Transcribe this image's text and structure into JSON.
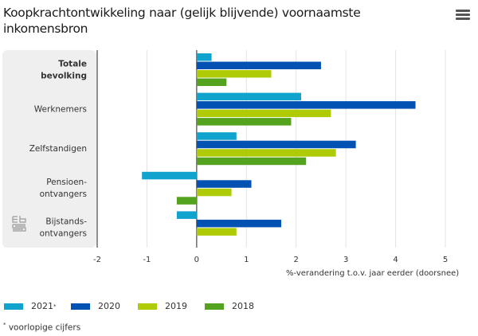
{
  "header": {
    "title": "Koopkrachtontwikkeling naar (gelijk blijvende) voornaamste inkomensbron",
    "menu_icon": "hamburger-menu-icon"
  },
  "logo": {
    "icon": "cbs-logo-icon",
    "text": "cbs"
  },
  "chart_data": {
    "type": "bar",
    "orientation": "horizontal",
    "title": "Koopkrachtontwikkeling naar (gelijk blijvende) voornaamste inkomensbron",
    "xlabel": "%-verandering t.o.v. jaar eerder (doorsnee)",
    "ylabel": "",
    "xlim": [
      -2,
      5
    ],
    "xticks": [
      -2,
      -1,
      0,
      1,
      2,
      3,
      4,
      5
    ],
    "grid": true,
    "legend_position": "bottom-left",
    "categories": [
      {
        "lines": [
          "Totale",
          "bevolking"
        ],
        "bold": true
      },
      {
        "lines": [
          "Werknemers"
        ],
        "bold": false
      },
      {
        "lines": [
          "Zelfstandigen"
        ],
        "bold": false
      },
      {
        "lines": [
          "Pensioen-",
          "ontvangers"
        ],
        "bold": false
      },
      {
        "lines": [
          "Bijstands-",
          "ontvangers"
        ],
        "bold": false
      }
    ],
    "series": [
      {
        "name": "2021",
        "marker": "*",
        "color": "#0fa3cd",
        "values": [
          0.3,
          2.1,
          0.8,
          -1.1,
          -0.4
        ]
      },
      {
        "name": "2020",
        "marker": "",
        "color": "#0152b3",
        "values": [
          2.5,
          4.4,
          3.2,
          1.1,
          1.7
        ]
      },
      {
        "name": "2019",
        "marker": "",
        "color": "#afcb07",
        "values": [
          1.5,
          2.7,
          2.8,
          0.7,
          0.8
        ]
      },
      {
        "name": "2018",
        "marker": "",
        "color": "#53a31e",
        "values": [
          0.6,
          1.9,
          2.2,
          -0.4,
          0.0
        ]
      }
    ]
  },
  "footnote": {
    "marker": "*",
    "text": "voorlopige cijfers"
  }
}
